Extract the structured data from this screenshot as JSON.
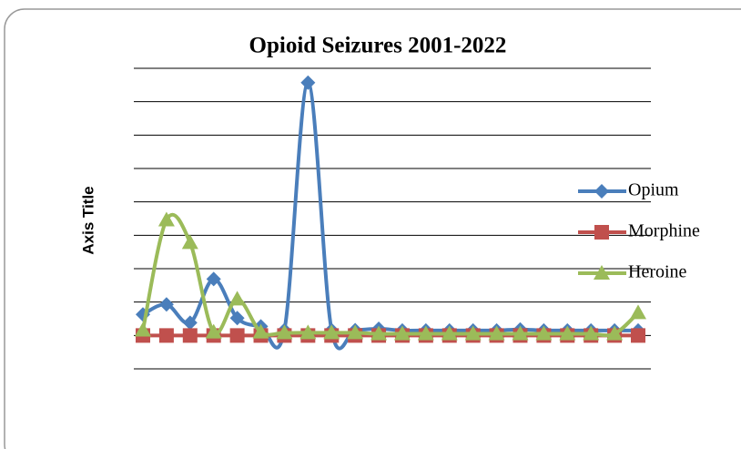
{
  "chart_data": {
    "type": "line",
    "title": "Opioid  Seizures 2001-2022",
    "y_axis_title": "Axis Title",
    "categories": [
      null,
      null,
      null,
      null,
      null,
      null,
      null,
      null,
      null,
      null,
      null,
      null,
      null,
      null,
      null,
      null,
      null,
      null,
      null,
      null,
      null,
      null
    ],
    "series": [
      {
        "name": "Opium",
        "color": "#4a7ebb",
        "marker": "diamond",
        "values": [
          0.63,
          0.93,
          0.38,
          1.69,
          0.52,
          0.27,
          0.16,
          7.57,
          0.16,
          0.16,
          0.2,
          0.15,
          0.15,
          0.15,
          0.15,
          0.15,
          0.18,
          0.15,
          0.15,
          0.15,
          0.15,
          0.15
        ]
      },
      {
        "name": "Morphine",
        "color": "#c0504d",
        "marker": "square",
        "values": [
          0,
          0,
          0,
          0,
          0,
          0,
          0,
          0,
          0,
          0,
          0,
          0,
          0,
          0,
          0,
          0,
          0,
          0,
          0,
          0,
          0,
          0
        ]
      },
      {
        "name": "Heroine",
        "color": "#9bbb59",
        "marker": "triangle",
        "values": [
          0.16,
          3.46,
          2.78,
          0.1,
          1.09,
          0.1,
          0.08,
          0.08,
          0.08,
          0.08,
          0.05,
          0.05,
          0.05,
          0.05,
          0.05,
          0.05,
          0.05,
          0.05,
          0.05,
          0.05,
          0.05,
          0.68
        ]
      }
    ],
    "ylim": [
      -1,
      8
    ],
    "yticks": [
      -1,
      0,
      1,
      2,
      3,
      4,
      5,
      6,
      7,
      8
    ],
    "grid": true,
    "smooth": true,
    "legend": "right"
  }
}
